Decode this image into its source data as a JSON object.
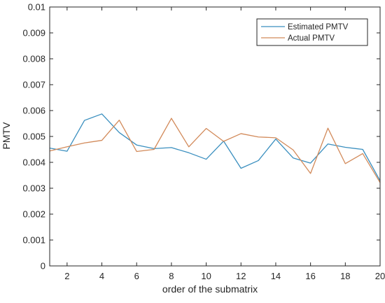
{
  "chart_data": {
    "type": "line",
    "title": "",
    "xlabel": "order of the submatrix",
    "ylabel": "PMTV",
    "xlim": [
      1,
      20
    ],
    "ylim": [
      0,
      0.01
    ],
    "grid": false,
    "legend_position": "top-right",
    "x_ticks": [
      2,
      4,
      6,
      8,
      10,
      12,
      14,
      16,
      18,
      20
    ],
    "x_tick_labels": [
      "2",
      "4",
      "6",
      "8",
      "10",
      "12",
      "14",
      "16",
      "18",
      "20"
    ],
    "y_ticks": [
      0,
      0.001,
      0.002,
      0.003,
      0.004,
      0.005,
      0.006,
      0.007,
      0.008,
      0.009,
      0.01
    ],
    "y_tick_labels": [
      "0",
      "0.001",
      "0.002",
      "0.003",
      "0.004",
      "0.005",
      "0.006",
      "0.007",
      "0.008",
      "0.009",
      "0.01"
    ],
    "x": [
      1,
      2,
      3,
      4,
      5,
      6,
      7,
      8,
      9,
      10,
      11,
      12,
      13,
      14,
      15,
      16,
      17,
      18,
      19,
      20
    ],
    "series": [
      {
        "name": "Estimated PMTV",
        "color": "#3a8fbf",
        "values": [
          0.00455,
          0.00443,
          0.00562,
          0.00587,
          0.00515,
          0.00467,
          0.00453,
          0.00457,
          0.00437,
          0.00412,
          0.00482,
          0.00377,
          0.00407,
          0.0049,
          0.00417,
          0.00397,
          0.00471,
          0.00458,
          0.0045,
          0.00329
        ]
      },
      {
        "name": "Actual PMTV",
        "color": "#d28a5a",
        "values": [
          0.00444,
          0.0046,
          0.00475,
          0.00485,
          0.00563,
          0.00442,
          0.0045,
          0.0057,
          0.0046,
          0.00531,
          0.00481,
          0.00511,
          0.00498,
          0.00495,
          0.00448,
          0.00357,
          0.00532,
          0.00395,
          0.00434,
          0.00322
        ]
      }
    ]
  }
}
